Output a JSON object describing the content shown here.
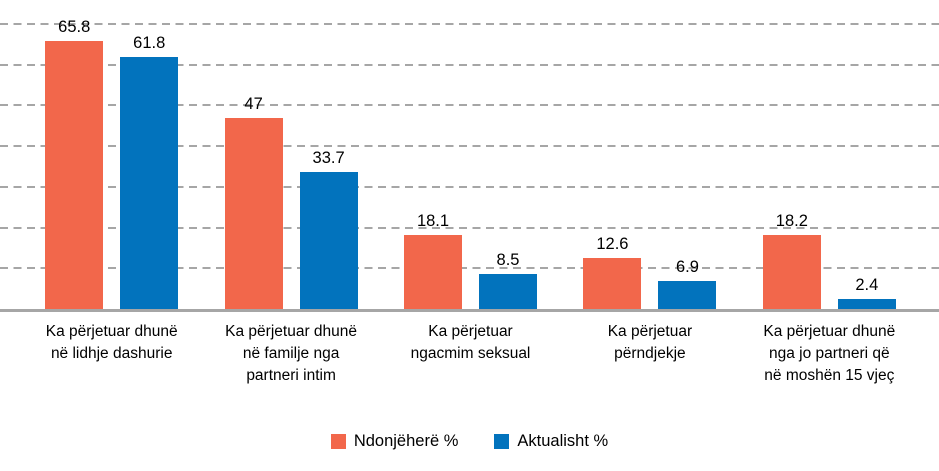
{
  "chart_data": {
    "type": "bar",
    "categories": [
      "Ka përjetuar dhunë\nnë lidhje dashurie",
      "Ka përjetuar dhunë\nnë familje nga\npartneri intim",
      "Ka përjetuar\nngacmim seksual",
      "Ka përjetuar\npërndjekje",
      "Ka përjetuar dhunë\nnga jo partneri që\nnë moshën 15 vjeç"
    ],
    "series": [
      {
        "name": "Ndonjëherë %",
        "color": "#F2674B",
        "values": [
          65.8,
          47,
          18.1,
          12.6,
          18.2
        ]
      },
      {
        "name": "Aktualisht %",
        "color": "#0273BD",
        "values": [
          61.8,
          33.7,
          8.5,
          6.9,
          2.4
        ]
      }
    ],
    "title": "",
    "xlabel": "",
    "ylabel": "",
    "ylim": [
      0,
      70
    ],
    "gridline_step": 10,
    "grid": "horizontal-dashed",
    "y_axis_labels_visible": false,
    "value_labels_visible": true,
    "legend_position": "bottom"
  },
  "colors": {
    "gridline": "#A6A6A6",
    "axis_line": "#A6A6A6",
    "label_text": "#000000",
    "background": "#FFFFFF"
  }
}
